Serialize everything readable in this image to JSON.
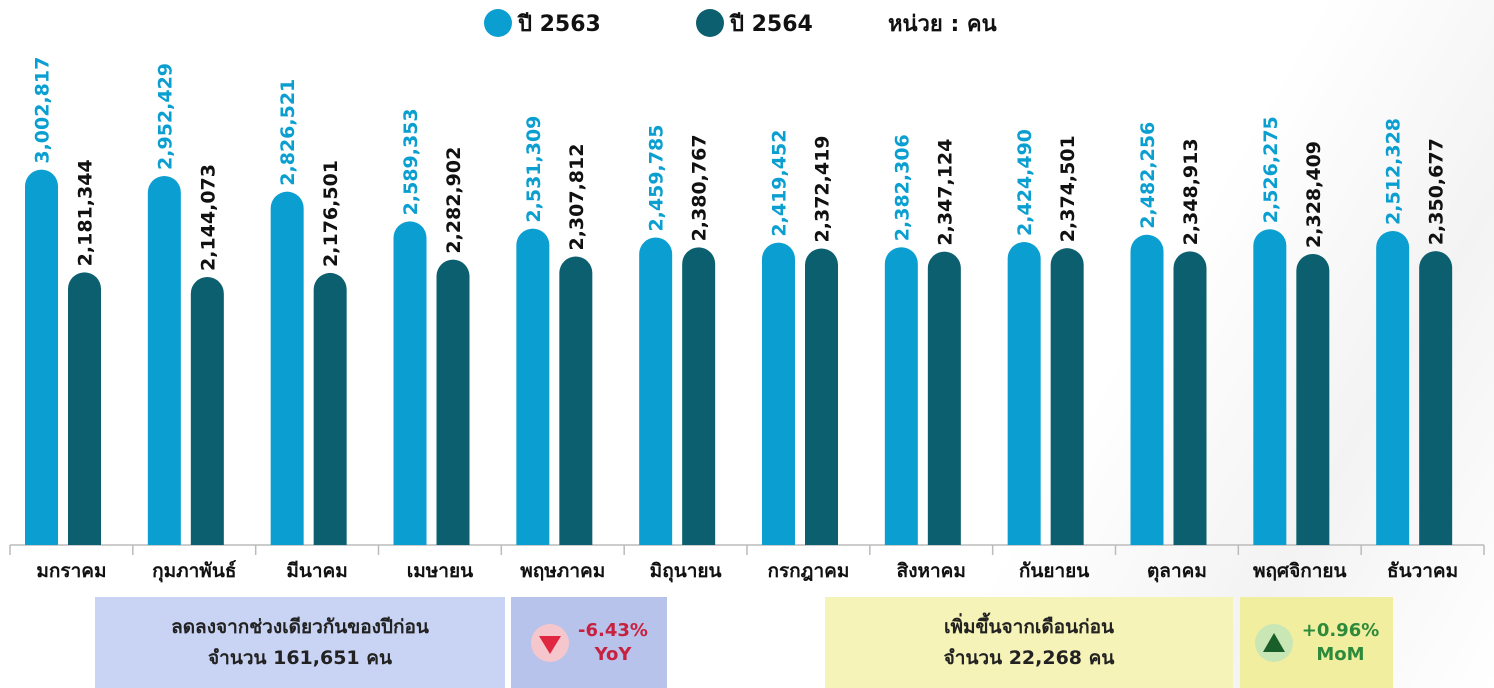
{
  "chart_data": {
    "type": "bar",
    "legend_unit": "หน่วย : คน",
    "categories": [
      "มกราคม",
      "กุมภาพันธ์",
      "มีนาคม",
      "เมษายน",
      "พฤษภาคม",
      "มิถุนายน",
      "กรกฎาคม",
      "สิงหาคม",
      "กันยายน",
      "ตุลาคม",
      "พฤศจิกายน",
      "ธันวาคม"
    ],
    "series": [
      {
        "name": "ปี 2563",
        "color": "#0a9fd0",
        "label_color": "#0a9fd0",
        "values": [
          3002817,
          2952429,
          2826521,
          2589353,
          2531309,
          2459785,
          2419452,
          2382306,
          2424490,
          2482256,
          2526275,
          2512328
        ],
        "value_labels": [
          "3,002,817",
          "2,952,429",
          "2,826,521",
          "2,589,353",
          "2,531,309",
          "2,459,785",
          "2,419,452",
          "2,382,306",
          "2,424,490",
          "2,482,256",
          "2,526,275",
          "2,512,328"
        ]
      },
      {
        "name": "ปี 2564",
        "color": "#0b5f6e",
        "label_color": "#111111",
        "values": [
          2181344,
          2144073,
          2176501,
          2282902,
          2307812,
          2380767,
          2372419,
          2347124,
          2374501,
          2348913,
          2328409,
          2350677
        ],
        "value_labels": [
          "2,181,344",
          "2,144,073",
          "2,176,501",
          "2,282,902",
          "2,307,812",
          "2,380,767",
          "2,372,419",
          "2,347,124",
          "2,374,501",
          "2,348,913",
          "2,328,409",
          "2,350,677"
        ]
      }
    ],
    "ylim": [
      0,
      4000000
    ]
  },
  "summary": {
    "yoy": {
      "line1": "ลดลงจากช่วงเดียวกันของปีก่อน",
      "line2": "จำนวน 161,651 คน",
      "change": "-6.43%",
      "label": "YoY"
    },
    "mom": {
      "line1": "เพิ่มขึ้นจากเดือนก่อน",
      "line2": "จำนวน 22,268 คน",
      "change": "+0.96%",
      "label": "MoM"
    }
  }
}
